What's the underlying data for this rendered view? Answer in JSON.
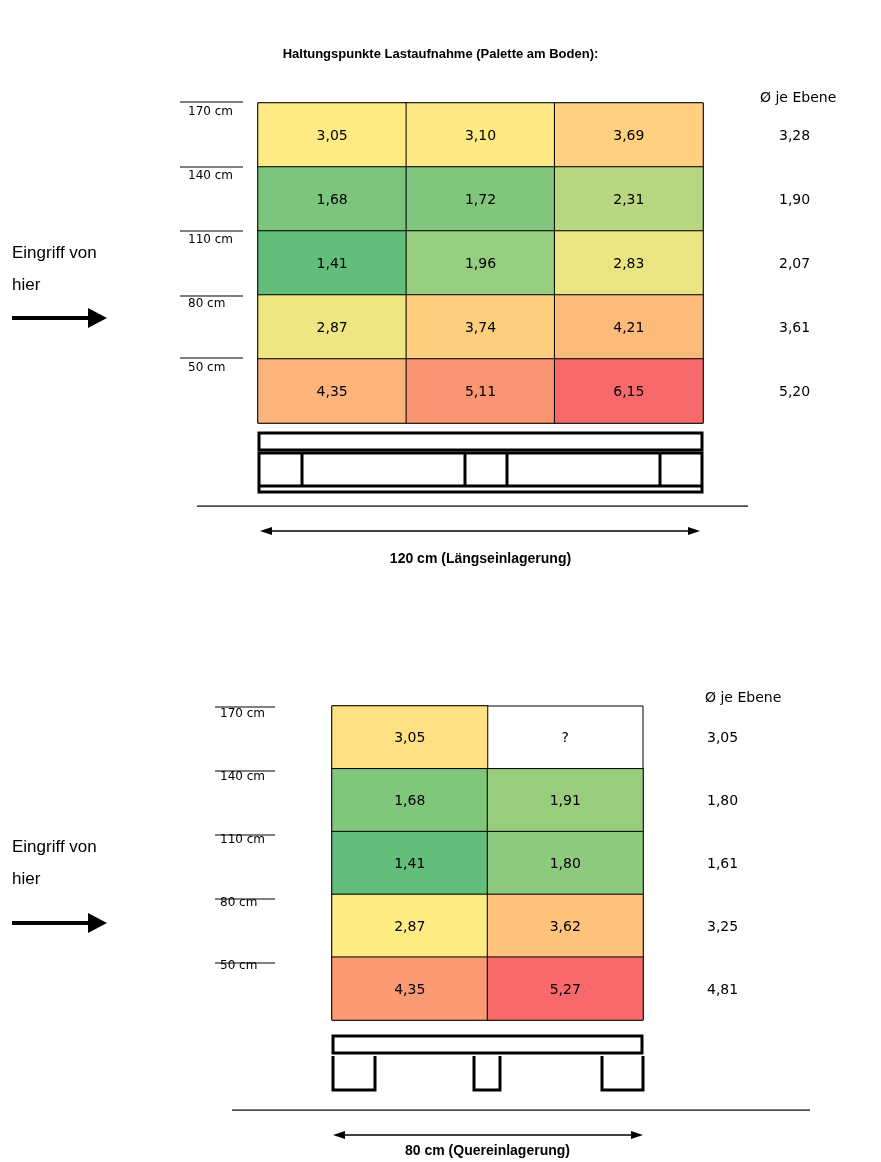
{
  "chart_data": [
    {
      "type": "heatmap",
      "title": "Haltungspunkte Lastaufnahme (Palette am Boden):",
      "xlabel": "120 cm (Längseinlagerung)",
      "categories": [
        null,
        null,
        null
      ],
      "y_categories": [
        "170 cm",
        "140 cm",
        "110 cm",
        "80 cm",
        "50 cm"
      ],
      "y2_categories": [
        "3,28",
        "1,90",
        "2,07",
        "3,61",
        "5,20"
      ],
      "cells": [
        [
          3.05,
          3.1,
          3.69
        ],
        [
          1.68,
          1.72,
          2.31
        ],
        [
          1.41,
          1.96,
          2.83
        ],
        [
          2.87,
          3.74,
          4.21
        ],
        [
          4.35,
          5.11,
          6.15
        ]
      ],
      "cell_labels": [
        [
          "3,05",
          "3,10",
          "3,69"
        ],
        [
          "1,68",
          "1,72",
          "2,31"
        ],
        [
          "1,41",
          "1,96",
          "2,83"
        ],
        [
          "2,87",
          "3,74",
          "4,21"
        ],
        [
          "4,35",
          "5,11",
          "6,15"
        ]
      ],
      "colors": [
        "#63be7b",
        "#ffeb84",
        "#f8696b"
      ],
      "annotations": [
        "Ø je Ebene",
        "Eingriff von hier"
      ]
    },
    {
      "type": "heatmap",
      "xlabel": "80 cm (Quereinlagerung)",
      "categories": [
        null,
        null
      ],
      "y_categories": [
        "170 cm",
        "140 cm",
        "110 cm",
        "80 cm",
        "50 cm"
      ],
      "y2_categories": [
        "3,05",
        "1,80",
        "1,61",
        "3,25",
        "4,81"
      ],
      "cells": [
        [
          3.05,
          null
        ],
        [
          1.68,
          1.91
        ],
        [
          1.41,
          1.8
        ],
        [
          2.87,
          3.62
        ],
        [
          4.35,
          5.27
        ]
      ],
      "cell_labels": [
        [
          "3,05",
          "?"
        ],
        [
          "1,68",
          "1,91"
        ],
        [
          "1,41",
          "1,80"
        ],
        [
          "2,87",
          "3,62"
        ],
        [
          "4,35",
          "5,27"
        ]
      ],
      "colors": [
        "#63be7b",
        "#ffeb84",
        "#f8696b"
      ],
      "annotations": [
        "Ø je Ebene",
        "Eingriff von hier"
      ]
    }
  ]
}
